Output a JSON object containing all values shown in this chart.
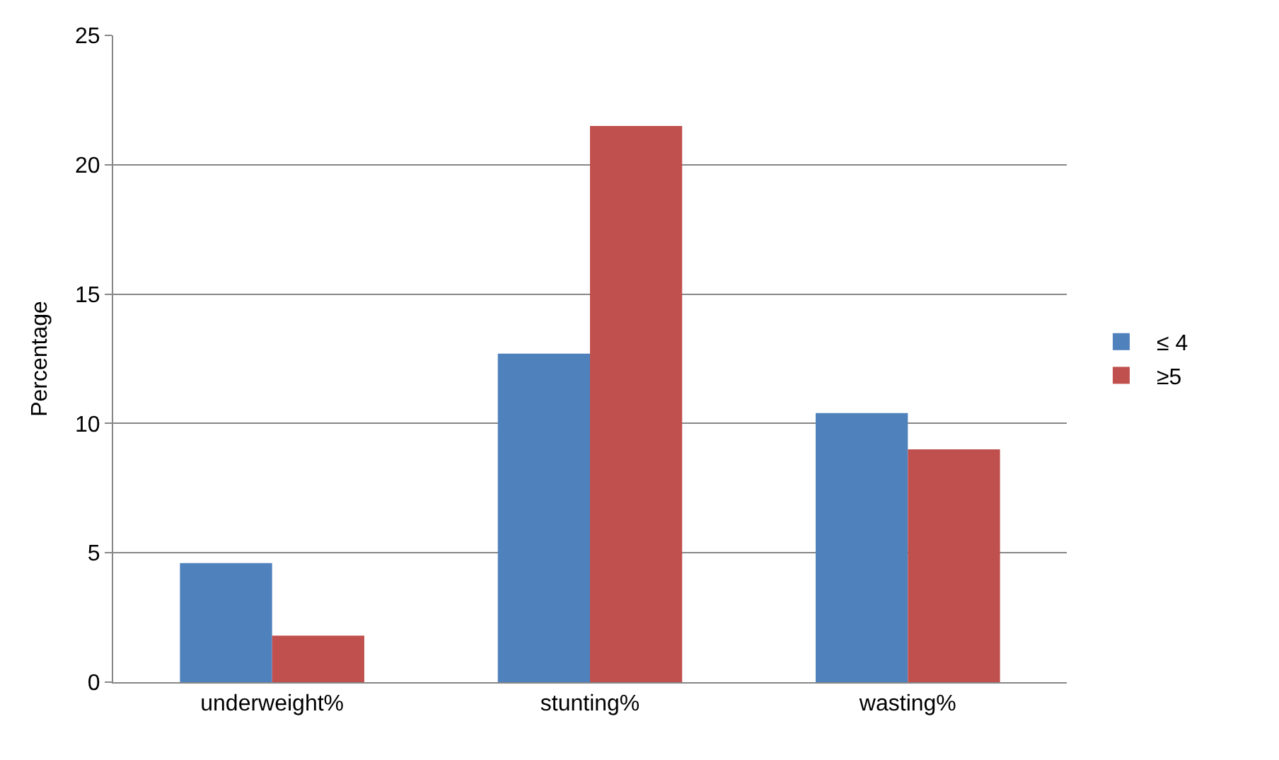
{
  "chart_data": {
    "type": "bar",
    "ylabel": "Percentage",
    "categories": [
      "underweight%",
      "stunting%",
      "wasting%"
    ],
    "series": [
      {
        "name": "≤ 4",
        "color": "#4f81bd",
        "values": [
          4.6,
          12.7,
          10.4
        ]
      },
      {
        "name": "≥5",
        "color": "#c0504d",
        "values": [
          1.8,
          21.5,
          9.0
        ]
      }
    ],
    "ylim": [
      0,
      25
    ],
    "yticks": [
      0,
      5,
      10,
      15,
      20,
      25
    ],
    "grid": "y",
    "legend": "right"
  }
}
